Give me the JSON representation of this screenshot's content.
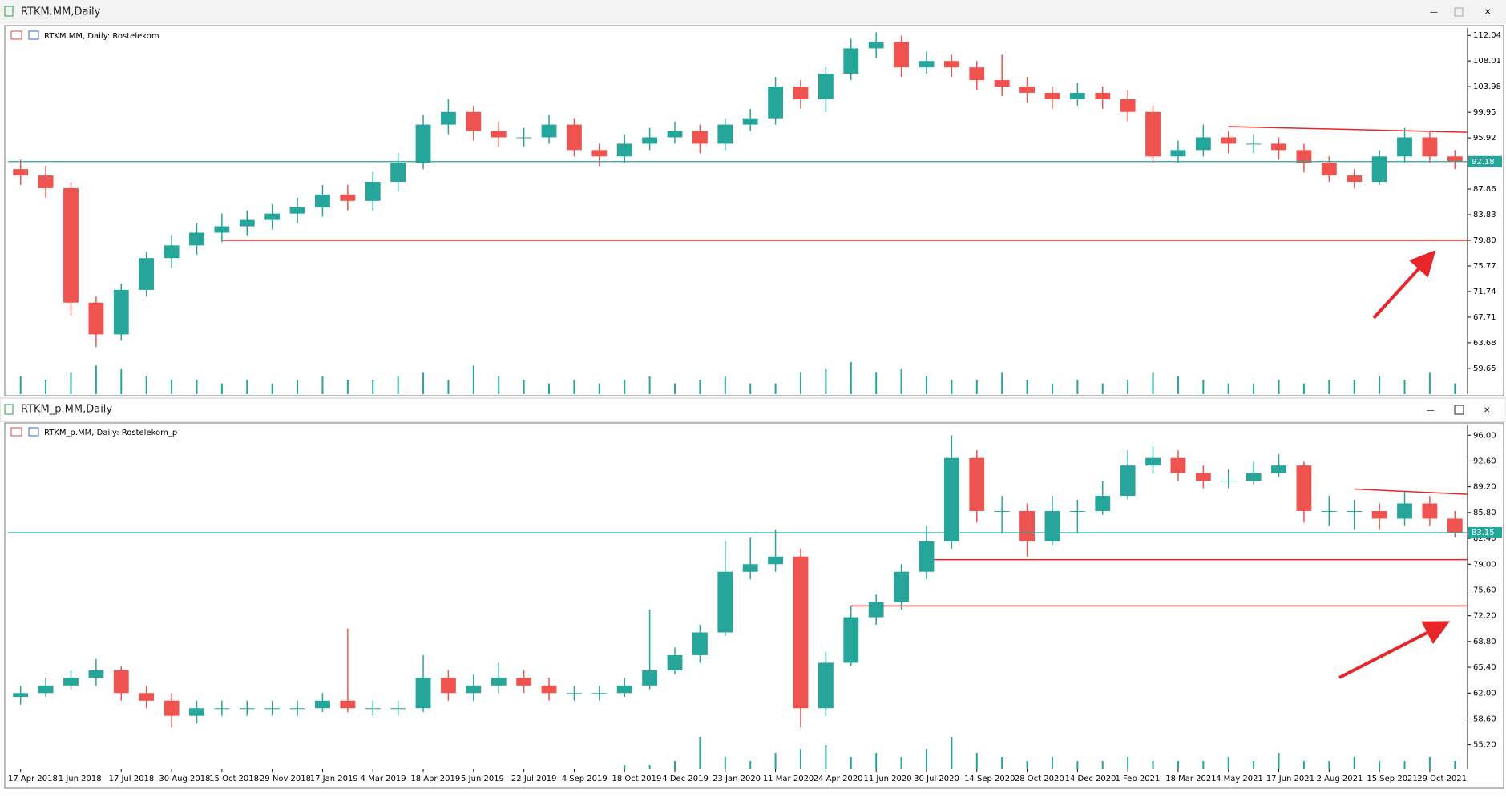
{
  "chart_data": [
    {
      "type": "candlestick",
      "title": "RTKM.MM,Daily",
      "subtitle": "RTKM.MM, Daily:  Rostelekom",
      "up_color": "#26a69a",
      "down_color": "#ef5350",
      "volume_color": "#26a69a",
      "price_line_color": "#26a69a",
      "ylim": [
        55.6,
        113.2
      ],
      "yticks": [
        112.04,
        108.01,
        103.98,
        99.95,
        95.92,
        87.86,
        83.83,
        {
          "value": 79.8,
          "label": "79.80"
        },
        75.77,
        71.74,
        67.71,
        63.68,
        59.65
      ],
      "open": [
        91,
        90,
        88,
        70,
        65,
        72,
        77,
        79,
        81,
        82,
        83,
        84,
        85,
        87,
        86,
        89,
        92,
        98,
        100,
        97,
        96,
        96,
        98,
        94,
        93,
        95,
        96,
        97,
        95,
        98,
        99,
        104,
        102,
        106,
        110,
        111,
        107,
        108,
        107,
        105,
        104,
        103,
        102,
        103,
        102,
        100,
        93,
        94,
        96,
        95,
        95,
        94,
        92,
        90,
        89,
        93,
        96,
        93
      ],
      "high": [
        92.5,
        91.5,
        89,
        71,
        73,
        78,
        80.5,
        82.5,
        84,
        84.5,
        85.5,
        86.5,
        88.5,
        88.5,
        90.5,
        93.5,
        99.5,
        102,
        101,
        98.5,
        97.5,
        99.5,
        99,
        95,
        96.5,
        97.5,
        98.5,
        98,
        99,
        100.5,
        105.5,
        105,
        107,
        111.5,
        112.5,
        112,
        109.5,
        109,
        108,
        109,
        105.5,
        104,
        104.5,
        104,
        103.5,
        101,
        95.5,
        98,
        97,
        96.5,
        96,
        95,
        93,
        91,
        94,
        97.5,
        97,
        94
      ],
      "low": [
        88.5,
        86.5,
        68,
        63,
        64,
        71,
        75.5,
        77.5,
        79.5,
        80.5,
        81.5,
        82.5,
        83.5,
        84.5,
        84.5,
        87.5,
        91,
        96.5,
        95.5,
        94.5,
        94.5,
        95,
        93,
        91.5,
        92,
        94,
        95,
        93.5,
        94,
        97,
        98,
        100.5,
        100,
        105,
        108.5,
        105.5,
        106,
        105.5,
        103.5,
        102.5,
        101.5,
        100.5,
        101,
        100.5,
        98.5,
        92,
        92,
        93,
        93.5,
        93.5,
        92.5,
        90.5,
        89,
        88,
        88.5,
        92,
        92,
        91
      ],
      "close": [
        90,
        88,
        70,
        65,
        72,
        77,
        79,
        81,
        82,
        83,
        84,
        85,
        87,
        86,
        89,
        92,
        98,
        100,
        97,
        96,
        96,
        98,
        94,
        93,
        95,
        96,
        97,
        95,
        98,
        99,
        104,
        102,
        106,
        110,
        111,
        107,
        108,
        107,
        105,
        104,
        103,
        102,
        103,
        102,
        100,
        93,
        94,
        96,
        95,
        95,
        94,
        92,
        90,
        89,
        93,
        96,
        93,
        92.18
      ],
      "volume": [
        5,
        4,
        6,
        8,
        7,
        5,
        4,
        4,
        3,
        4,
        3,
        4,
        5,
        4,
        4,
        5,
        6,
        4,
        8,
        5,
        4,
        3,
        4,
        3,
        4,
        5,
        3,
        4,
        5,
        3,
        3,
        6,
        7,
        9,
        6,
        7,
        5,
        4,
        4,
        6,
        4,
        3,
        4,
        3,
        4,
        6,
        5,
        4,
        3,
        3,
        4,
        3,
        4,
        4,
        5,
        4,
        6,
        3
      ],
      "levels": [
        {
          "value": 79.8,
          "color": "#e8262a"
        }
      ],
      "trendline": {
        "values": [
          97.7,
          96.8
        ],
        "color": "#e8262a"
      }
    },
    {
      "type": "candlestick",
      "title": "RTKM_p.MM,Daily",
      "subtitle": "RTKM_p.MM, Daily:  Rostelekom_p",
      "up_color": "#26a69a",
      "down_color": "#ef5350",
      "volume_color": "#26a69a",
      "price_line_color": "#26a69a",
      "ylim": [
        52.0,
        97.4
      ],
      "yticks": [
        {
          "value": 96,
          "label": "96.00"
        },
        {
          "value": 92.6,
          "label": "92.60"
        },
        {
          "value": 89.2,
          "label": "89.20"
        },
        {
          "value": 85.8,
          "label": "85.80"
        },
        {
          "value": 82.4,
          "label": "82.40"
        },
        {
          "value": 79,
          "label": "79.00"
        },
        {
          "value": 75.6,
          "label": "75.60"
        },
        {
          "value": 72.2,
          "label": "72.20"
        },
        {
          "value": 68.8,
          "label": "68.80"
        },
        {
          "value": 65.4,
          "label": "65.40"
        },
        {
          "value": 62,
          "label": "62.00"
        },
        {
          "value": 58.6,
          "label": "58.60"
        },
        {
          "value": 55.2,
          "label": "55.20"
        }
      ],
      "categories": [
        "17 Apr 2018",
        null,
        "1 Jun 2018",
        null,
        "17 Jul 2018",
        null,
        "30 Aug 2018",
        null,
        "15 Oct 2018",
        null,
        "29 Nov 2018",
        null,
        "17 Jan 2019",
        null,
        "4 Mar 2019",
        null,
        "18 Apr 2019",
        null,
        "5 Jun 2019",
        null,
        "22 Jul 2019",
        null,
        "4 Sep 2019",
        null,
        "18 Oct 2019",
        null,
        "4 Dec 2019",
        null,
        "23 Jan 2020",
        null,
        "11 Mar 2020",
        null,
        "24 Apr 2020",
        null,
        "11 Jun 2020",
        null,
        "30 Jul 2020",
        null,
        "14 Sep 2020",
        null,
        "28 Oct 2020",
        null,
        "14 Dec 2020",
        null,
        "1 Feb 2021",
        null,
        "18 Mar 2021",
        null,
        "4 May 2021",
        null,
        "17 Jun 2021",
        null,
        "2 Aug 2021",
        null,
        "15 Sep 2021",
        null,
        "29 Oct 2021",
        null
      ],
      "open": [
        61.5,
        62,
        63,
        64,
        65,
        62,
        61,
        59,
        60,
        60,
        60,
        60,
        60,
        61,
        60,
        60,
        60,
        64,
        62,
        63,
        64,
        63,
        62,
        62,
        62,
        63,
        65,
        67,
        70,
        78,
        79,
        80,
        60,
        66,
        72,
        74,
        78,
        82,
        93,
        86,
        86,
        82,
        86,
        86,
        88,
        92,
        93,
        91,
        90,
        90,
        91,
        92,
        86,
        86,
        86,
        85,
        87,
        85
      ],
      "high": [
        63,
        64,
        65,
        66.5,
        65.5,
        63,
        62,
        61,
        61,
        61,
        61,
        61,
        62,
        70.5,
        61,
        61,
        67,
        65,
        64.5,
        66,
        65,
        64,
        63,
        63,
        64,
        73,
        68,
        71,
        82,
        82.5,
        83.5,
        81,
        67.5,
        73.5,
        75,
        79,
        84,
        96,
        94,
        88,
        87,
        88,
        87.5,
        90,
        94,
        94.5,
        94,
        92,
        91.5,
        92.5,
        93.5,
        92.5,
        88,
        87.5,
        87,
        88.5,
        88,
        86
      ],
      "low": [
        60.5,
        61.5,
        62.5,
        63,
        61,
        60,
        57.5,
        58,
        59,
        59,
        59,
        59,
        59.5,
        59.5,
        59,
        59,
        59.5,
        61,
        61,
        62,
        62,
        61,
        61,
        61,
        61.5,
        62.5,
        64.5,
        66,
        69.5,
        77,
        78,
        57.5,
        59,
        65.5,
        71,
        73,
        77,
        81,
        84.5,
        83,
        80,
        81.5,
        83,
        85.5,
        87.5,
        91,
        90,
        89,
        89,
        89.5,
        90.5,
        84.5,
        84,
        83.5,
        83.5,
        84,
        84,
        82.5
      ],
      "close": [
        62,
        63,
        64,
        65,
        62,
        61,
        59,
        60,
        60,
        60,
        60,
        60,
        61,
        60,
        60,
        60,
        64,
        62,
        63,
        64,
        63,
        62,
        62,
        62,
        63,
        65,
        67,
        70,
        78,
        79,
        80,
        60,
        66,
        72,
        74,
        78,
        82,
        93,
        86,
        86,
        82,
        86,
        86,
        88,
        92,
        93,
        91,
        90,
        90,
        91,
        92,
        86,
        86,
        86,
        85,
        87,
        85,
        83.15
      ],
      "volume": [
        0,
        0,
        0,
        0,
        0,
        0,
        0,
        0,
        0,
        0,
        0,
        0,
        0,
        0,
        0,
        0,
        0,
        0,
        0,
        0,
        0,
        0,
        0,
        0,
        1,
        1,
        2,
        8,
        3,
        2,
        4,
        5,
        6,
        3,
        4,
        3,
        5,
        8,
        4,
        3,
        2,
        3,
        2,
        2,
        3,
        2,
        2,
        2,
        3,
        2,
        4,
        2,
        2,
        3,
        2,
        2,
        3,
        2
      ],
      "levels": [
        {
          "value": 79.6,
          "color": "#e8262a"
        },
        {
          "value": 73.5,
          "color": "#e8262a"
        }
      ],
      "trendline": {
        "values": [
          88.9,
          88.2
        ],
        "color": "#e8262a"
      }
    }
  ]
}
